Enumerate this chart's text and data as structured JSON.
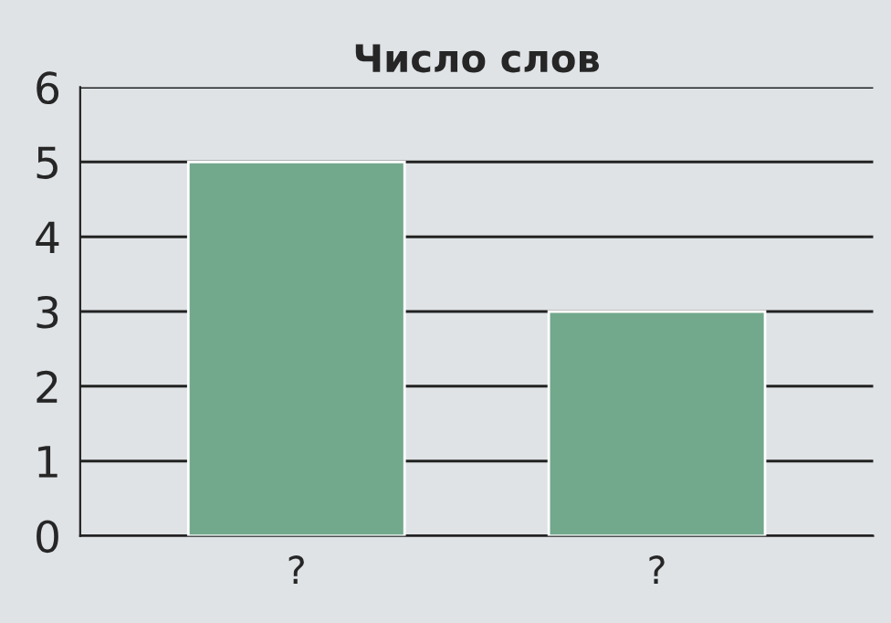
{
  "chart_data": {
    "type": "bar",
    "title": "Число слов",
    "categories": [
      "?",
      "?"
    ],
    "values": [
      5,
      3
    ],
    "color": "#72a88c",
    "ylim": [
      0,
      6
    ],
    "yticks": [
      0,
      1,
      2,
      3,
      4,
      5,
      6
    ],
    "grid": "y"
  }
}
